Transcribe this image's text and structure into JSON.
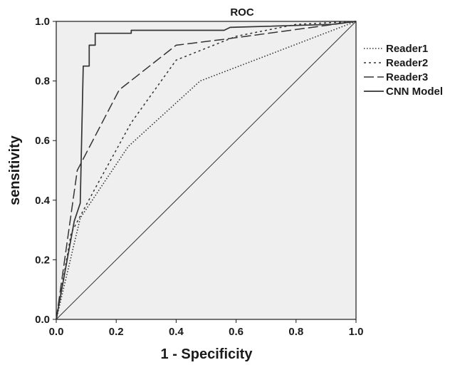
{
  "chart_data": {
    "type": "line",
    "title": "ROC",
    "xlabel": "1 - Specificity",
    "ylabel": "sensitivity",
    "xlim": [
      0,
      1
    ],
    "ylim": [
      0,
      1
    ],
    "x_ticks": [
      "0.0",
      "0.2",
      "0.4",
      "0.6",
      "0.8",
      "1.0"
    ],
    "y_ticks": [
      "0.0",
      "0.2",
      "0.4",
      "0.6",
      "0.8",
      "1.0"
    ],
    "grid": false,
    "legend_position": "right",
    "plot_background": "#efefef",
    "line_color": "#333333",
    "series": [
      {
        "name": "Reader1",
        "dash": "dotted",
        "points": [
          [
            0,
            0
          ],
          [
            0.08,
            0.34
          ],
          [
            0.24,
            0.58
          ],
          [
            0.48,
            0.8
          ],
          [
            1,
            1
          ]
        ]
      },
      {
        "name": "Reader2",
        "dash": "short-dash",
        "points": [
          [
            0,
            0
          ],
          [
            0.05,
            0.29
          ],
          [
            0.13,
            0.44
          ],
          [
            0.25,
            0.66
          ],
          [
            0.4,
            0.87
          ],
          [
            0.6,
            0.95
          ],
          [
            0.8,
            0.99
          ],
          [
            1,
            1
          ]
        ]
      },
      {
        "name": "Reader3",
        "dash": "long-dash",
        "points": [
          [
            0,
            0
          ],
          [
            0.07,
            0.5
          ],
          [
            0.21,
            0.77
          ],
          [
            0.4,
            0.92
          ],
          [
            0.56,
            0.94
          ],
          [
            1,
            1
          ]
        ]
      },
      {
        "name": "CNN Model",
        "dash": "solid",
        "points": [
          [
            0,
            0
          ],
          [
            0.06,
            0.33
          ],
          [
            0.08,
            0.39
          ],
          [
            0.09,
            0.85
          ],
          [
            0.11,
            0.85
          ],
          [
            0.11,
            0.92
          ],
          [
            0.13,
            0.92
          ],
          [
            0.13,
            0.96
          ],
          [
            0.25,
            0.96
          ],
          [
            0.25,
            0.97
          ],
          [
            0.56,
            0.97
          ],
          [
            0.58,
            0.98
          ],
          [
            0.92,
            0.99
          ],
          [
            1,
            1
          ]
        ]
      },
      {
        "name": "",
        "dash": "solid-thin",
        "role": "reference",
        "points": [
          [
            0,
            0
          ],
          [
            1,
            1
          ]
        ]
      }
    ]
  }
}
